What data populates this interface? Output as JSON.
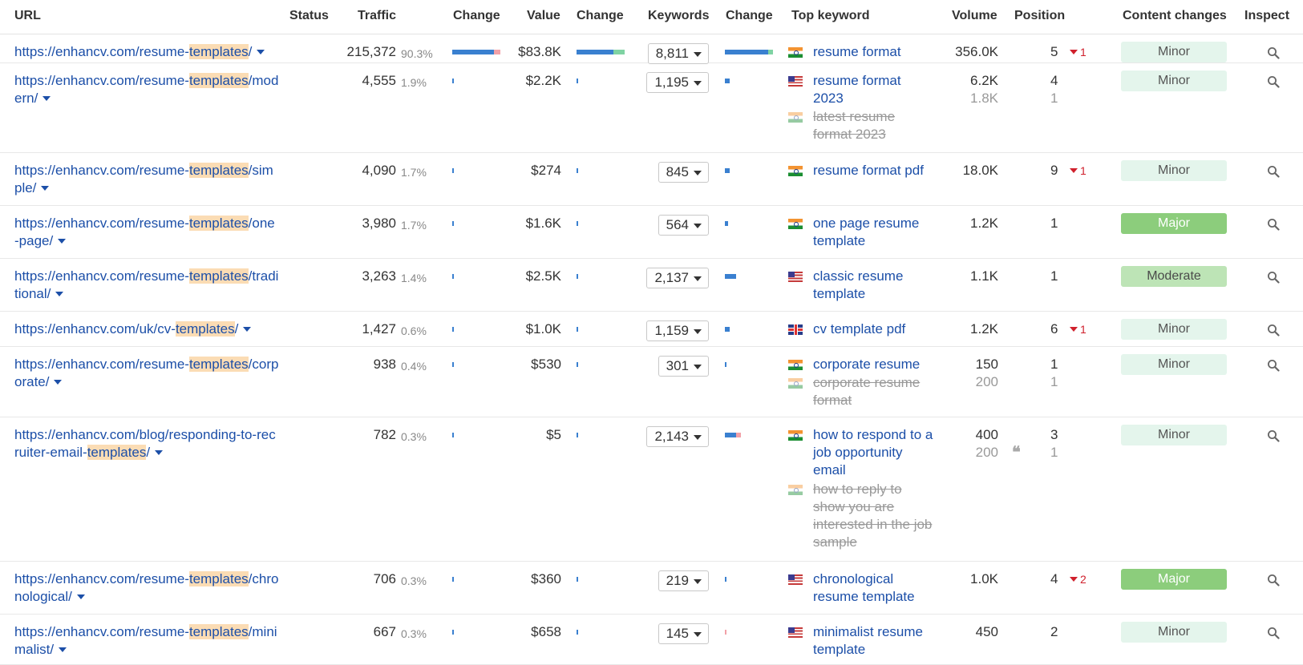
{
  "headers": {
    "url": "URL",
    "status": "Status",
    "traffic": "Traffic",
    "change1": "Change",
    "value": "Value",
    "change2": "Change",
    "keywords": "Keywords",
    "change3": "Change",
    "top_keyword": "Top keyword",
    "volume": "Volume",
    "position": "Position",
    "content_changes": "Content changes",
    "inspect": "Inspect"
  },
  "colors": {
    "link": "#1c4fa8",
    "highlight": "#fbdcb4",
    "bar_blue": "#3a80d0",
    "bar_red": "#f2a1a8",
    "bar_green": "#7fd3a3",
    "badge_minor": "#e4f5ec",
    "badge_major": "#8ccd7c",
    "badge_moderate": "#bde4b6",
    "delta_red": "#d0202c"
  },
  "rows": [
    {
      "url_parts": [
        "https://enhancv.com/resume-",
        "templates",
        "/"
      ],
      "traffic": "215,372",
      "traffic_pct": "90.3%",
      "value": "$83.8K",
      "keywords": "8,811",
      "keywords_list": [
        {
          "flag": "in",
          "text": "resume format",
          "volume": "356.0K",
          "position": "5",
          "delta": "1",
          "strike": false
        }
      ],
      "content_change": "Minor",
      "change_level": "minor"
    },
    {
      "url_parts": [
        "https://enhancv.com/resume-",
        "templates",
        "/modern/"
      ],
      "traffic": "4,555",
      "traffic_pct": "1.9%",
      "value": "$2.2K",
      "keywords": "1,195",
      "keywords_list": [
        {
          "flag": "us",
          "text": "resume format 2023",
          "volume": "6.2K",
          "position": "4",
          "delta": "",
          "strike": false
        },
        {
          "flag": "in",
          "text": "latest resume format 2023",
          "volume": "1.8K",
          "position": "1",
          "delta": "",
          "strike": true
        }
      ],
      "content_change": "Minor",
      "change_level": "minor"
    },
    {
      "url_parts": [
        "https://enhancv.com/resume-",
        "templates",
        "/simple/"
      ],
      "traffic": "4,090",
      "traffic_pct": "1.7%",
      "value": "$274",
      "keywords": "845",
      "keywords_list": [
        {
          "flag": "in",
          "text": "resume format pdf",
          "volume": "18.0K",
          "position": "9",
          "delta": "1",
          "strike": false
        }
      ],
      "content_change": "Minor",
      "change_level": "minor"
    },
    {
      "url_parts": [
        "https://enhancv.com/resume-",
        "templates",
        "/one-page/"
      ],
      "traffic": "3,980",
      "traffic_pct": "1.7%",
      "value": "$1.6K",
      "keywords": "564",
      "keywords_list": [
        {
          "flag": "in",
          "text": "one page resume template",
          "volume": "1.2K",
          "position": "1",
          "delta": "",
          "strike": false
        }
      ],
      "content_change": "Major",
      "change_level": "major"
    },
    {
      "url_parts": [
        "https://enhancv.com/resume-",
        "templates",
        "/traditional/"
      ],
      "traffic": "3,263",
      "traffic_pct": "1.4%",
      "value": "$2.5K",
      "keywords": "2,137",
      "keywords_list": [
        {
          "flag": "us",
          "text": "classic resume template",
          "volume": "1.1K",
          "position": "1",
          "delta": "",
          "strike": false
        }
      ],
      "content_change": "Moderate",
      "change_level": "moderate"
    },
    {
      "url_parts": [
        "https://enhancv.com/uk/cv-",
        "templates",
        "/"
      ],
      "traffic": "1,427",
      "traffic_pct": "0.6%",
      "value": "$1.0K",
      "keywords": "1,159",
      "keywords_list": [
        {
          "flag": "uk",
          "text": "cv template pdf",
          "volume": "1.2K",
          "position": "6",
          "delta": "1",
          "strike": false
        }
      ],
      "content_change": "Minor",
      "change_level": "minor"
    },
    {
      "url_parts": [
        "https://enhancv.com/resume-",
        "templates",
        "/corporate/"
      ],
      "traffic": "938",
      "traffic_pct": "0.4%",
      "value": "$530",
      "keywords": "301",
      "keywords_list": [
        {
          "flag": "in",
          "text": "corporate resume",
          "volume": "150",
          "position": "1",
          "delta": "",
          "strike": false
        },
        {
          "flag": "in",
          "text": "corporate resume format",
          "volume": "200",
          "position": "1",
          "delta": "",
          "strike": true
        }
      ],
      "content_change": "Minor",
      "change_level": "minor"
    },
    {
      "url_parts": [
        "https://enhancv.com/blog/responding-to-recruiter-email-",
        "templates",
        "/"
      ],
      "traffic": "782",
      "traffic_pct": "0.3%",
      "value": "$5",
      "keywords": "2,143",
      "keywords_list": [
        {
          "flag": "in",
          "text": "how to respond to a job opportunity email",
          "volume": "400",
          "position": "3",
          "delta": "",
          "strike": false
        },
        {
          "flag": "in",
          "text": "how to reply to show you are interested in the job sample",
          "volume": "200",
          "position": "1",
          "delta": "",
          "strike": true
        }
      ],
      "quote": "❝",
      "content_change": "Minor",
      "change_level": "minor"
    },
    {
      "url_parts": [
        "https://enhancv.com/resume-",
        "templates",
        "/chronological/"
      ],
      "traffic": "706",
      "traffic_pct": "0.3%",
      "value": "$360",
      "keywords": "219",
      "keywords_list": [
        {
          "flag": "us",
          "text": "chronological resume template",
          "volume": "1.0K",
          "position": "4",
          "delta": "2",
          "strike": false
        }
      ],
      "content_change": "Major",
      "change_level": "major"
    },
    {
      "url_parts": [
        "https://enhancv.com/resume-",
        "templates",
        "/minimalist/"
      ],
      "traffic": "667",
      "traffic_pct": "0.3%",
      "value": "$658",
      "keywords": "145",
      "keywords_list": [
        {
          "flag": "us",
          "text": "minimalist resume template",
          "volume": "450",
          "position": "2",
          "delta": "",
          "strike": false
        }
      ],
      "content_change": "Minor",
      "change_level": "minor"
    }
  ],
  "icons": {
    "dropdown": "chevron-down-icon",
    "inspect": "search-icon",
    "quote": "quote-icon"
  }
}
